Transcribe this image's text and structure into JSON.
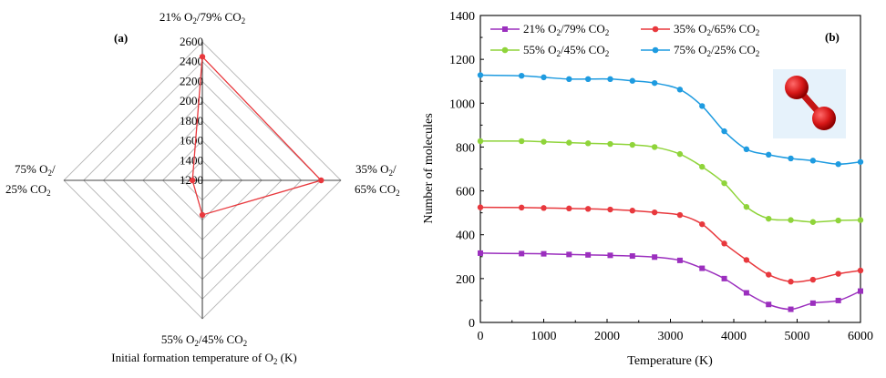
{
  "panel_a": {
    "panel_label": "(a)",
    "axis_title": "Initial formation temperature of O",
    "axis_title_sub": "2",
    "axis_title_unit": " (K)",
    "ticks": [
      "1200",
      "1400",
      "1600",
      "1800",
      "2000",
      "2200",
      "2400",
      "2600"
    ],
    "axis_labels": {
      "top": {
        "p1": "21% O",
        "s1": "2",
        "p2": "/79% CO",
        "s2": "2"
      },
      "right_line1": {
        "p1": "35% O",
        "s1": "2",
        "p2": "/"
      },
      "right_line2": {
        "p1": "65% CO",
        "s1": "2"
      },
      "bottom": {
        "p1": "55% O",
        "s1": "2",
        "p2": "/45% CO",
        "s2": "2"
      },
      "left_line1": {
        "p1": "75% O",
        "s1": "2",
        "p2": "/"
      },
      "left_line2": {
        "p1": "25% CO",
        "s1": "2"
      }
    }
  },
  "panel_b": {
    "panel_label": "(b)",
    "xlabel": "Temperature  (K)",
    "ylabel": "Number of molecules",
    "legend": [
      {
        "p1": "21% O",
        "s1": "2",
        "p2": "/79% CO",
        "s2": "2"
      },
      {
        "p1": "35% O",
        "s1": "2",
        "p2": "/65% CO",
        "s2": "2"
      },
      {
        "p1": "55% O",
        "s1": "2",
        "p2": "/45% CO",
        "s2": "2"
      },
      {
        "p1": "75% O",
        "s1": "2",
        "p2": "/25% CO",
        "s2": "2"
      }
    ]
  },
  "chart_data": [
    {
      "type": "radar",
      "categories": [
        "21% O2/79% CO2",
        "35% O2/65% CO2",
        "55% O2/45% CO2",
        "75% O2/25% CO2"
      ],
      "values": [
        2450,
        2400,
        1550,
        1300
      ],
      "range": [
        1200,
        2600
      ],
      "tick_step": 200,
      "color": "#e8383d"
    },
    {
      "type": "line",
      "xlim": [
        0,
        6000
      ],
      "ylim": [
        0,
        1400
      ],
      "xticks": [
        0,
        1000,
        2000,
        3000,
        4000,
        5000,
        6000
      ],
      "yticks": [
        0,
        200,
        400,
        600,
        800,
        1000,
        1200,
        1400
      ],
      "x": [
        0,
        650,
        1000,
        1400,
        1700,
        2050,
        2400,
        2750,
        3150,
        3500,
        3850,
        4200,
        4550,
        4900,
        5250,
        5650,
        6000
      ],
      "series": [
        {
          "name": "21% O2/79% CO2",
          "color": "#9b2fbe",
          "marker": "square",
          "values": [
            316,
            314,
            313,
            310,
            308,
            306,
            303,
            298,
            283,
            247,
            200,
            135,
            82,
            60,
            88,
            100,
            143
          ]
        },
        {
          "name": "35% O2/65% CO2",
          "color": "#e8383d",
          "marker": "circle",
          "values": [
            525,
            524,
            522,
            520,
            518,
            515,
            510,
            502,
            490,
            448,
            360,
            285,
            218,
            186,
            195,
            222,
            237
          ]
        },
        {
          "name": "55% O2/45% CO2",
          "color": "#8fd43a",
          "marker": "circle",
          "values": [
            827,
            827,
            824,
            820,
            817,
            814,
            810,
            800,
            768,
            710,
            635,
            527,
            473,
            467,
            458,
            465,
            467
          ]
        },
        {
          "name": "75% O2/25% CO2",
          "color": "#1e9be0",
          "marker": "circle",
          "values": [
            1128,
            1125,
            1118,
            1110,
            1110,
            1110,
            1102,
            1092,
            1062,
            987,
            872,
            790,
            765,
            748,
            738,
            722,
            732
          ]
        }
      ]
    }
  ]
}
